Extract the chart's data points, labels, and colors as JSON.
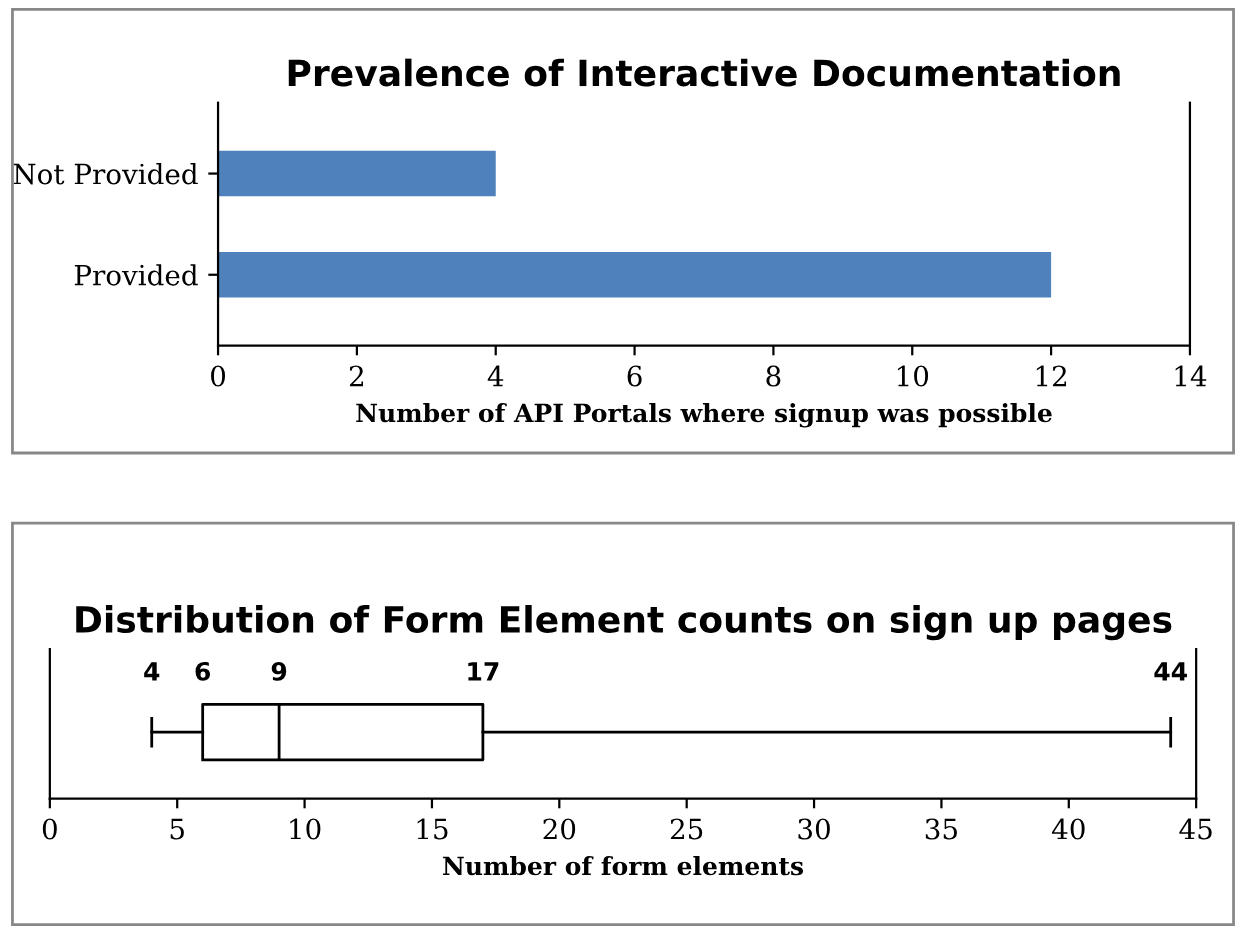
{
  "chart_data": [
    {
      "type": "bar",
      "orientation": "horizontal",
      "title": "Prevalence of Interactive Documentation",
      "xlabel": "Number of API Portals where signup was possible",
      "categories": [
        "Not Provided",
        "Provided"
      ],
      "values": [
        4,
        12
      ],
      "color": "#4f81bd",
      "xlim": [
        0,
        14
      ],
      "xticks": [
        0,
        2,
        4,
        6,
        8,
        10,
        12,
        14
      ],
      "grid": false,
      "legend": false
    },
    {
      "type": "box",
      "orientation": "horizontal",
      "title": "Distribution of Form Element counts on sign up pages",
      "xlabel": "Number of form elements",
      "categories": [
        null
      ],
      "boxes": [
        {
          "low": 4,
          "q1": 6,
          "median": 9,
          "q3": 17,
          "high": 44
        }
      ],
      "annotations": [
        "4",
        "6",
        "9",
        "17",
        "44"
      ],
      "xlim": [
        0,
        45
      ],
      "xticks": [
        0,
        5,
        10,
        15,
        20,
        25,
        30,
        35,
        40,
        45
      ],
      "grid": false,
      "legend": false
    }
  ]
}
